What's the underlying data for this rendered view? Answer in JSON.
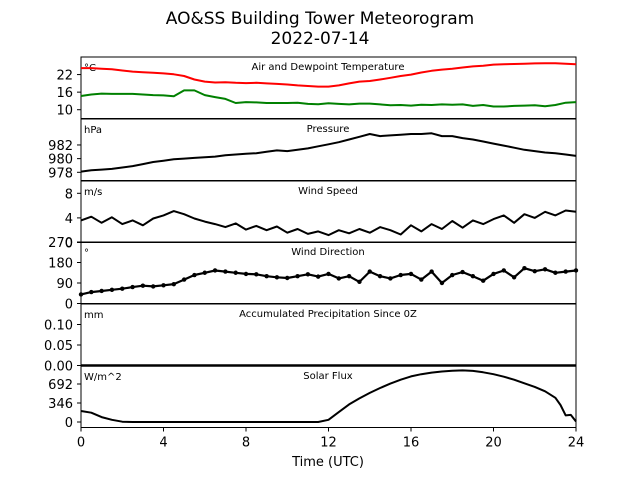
{
  "title": "AO&SS Building Tower Meteorogram",
  "subtitle": "2022-07-14",
  "xlabel": "Time (UTC)",
  "x_ticks": [
    "0",
    "4",
    "8",
    "12",
    "16",
    "20",
    "24"
  ],
  "x_tick_values": [
    0,
    4,
    8,
    12,
    16,
    20,
    24
  ],
  "chart_data": [
    {
      "type": "line",
      "title": "Air and Dewpoint Temperature",
      "unit_label": "°C",
      "ylim": [
        7,
        28
      ],
      "y_ticks": [
        10,
        16,
        22
      ],
      "x": [
        0,
        0.5,
        1,
        1.5,
        2,
        2.5,
        3,
        3.5,
        4,
        4.5,
        5,
        5.5,
        6,
        6.5,
        7,
        7.5,
        8,
        8.5,
        9,
        9.5,
        10,
        10.5,
        11,
        11.5,
        12,
        12.5,
        13,
        13.5,
        14,
        14.5,
        15,
        15.5,
        16,
        16.5,
        17,
        17.5,
        18,
        18.5,
        19,
        19.5,
        20,
        20.5,
        21,
        21.5,
        22,
        22.5,
        23,
        23.5,
        24
      ],
      "series": [
        {
          "color": "#ff0000",
          "values": [
            24.2,
            24.2,
            24.0,
            23.8,
            23.4,
            23.0,
            22.8,
            22.6,
            22.4,
            22.1,
            21.5,
            20.3,
            19.6,
            19.3,
            19.4,
            19.2,
            19.1,
            19.2,
            19.0,
            18.8,
            18.6,
            18.3,
            18.1,
            17.9,
            17.9,
            18.3,
            19.0,
            19.6,
            19.8,
            20.3,
            20.9,
            21.5,
            22.0,
            22.7,
            23.3,
            23.7,
            24.0,
            24.4,
            24.8,
            25.0,
            25.4,
            25.5,
            25.6,
            25.7,
            25.8,
            25.9,
            25.9,
            25.7,
            25.5
          ]
        },
        {
          "color": "#008000",
          "values": [
            14.7,
            15.2,
            15.5,
            15.4,
            15.4,
            15.4,
            15.2,
            15.0,
            14.9,
            14.6,
            16.6,
            16.6,
            15.0,
            14.3,
            13.7,
            12.3,
            12.6,
            12.5,
            12.3,
            12.3,
            12.3,
            12.4,
            12.0,
            11.9,
            12.2,
            12.0,
            11.8,
            12.1,
            12.1,
            11.8,
            11.5,
            11.6,
            11.4,
            11.7,
            11.6,
            11.8,
            11.7,
            11.8,
            11.3,
            11.6,
            11.1,
            11.1,
            11.3,
            11.4,
            11.5,
            11.2,
            11.6,
            12.4,
            12.6
          ]
        }
      ]
    },
    {
      "type": "line",
      "title": "Pressure",
      "unit_label": "hPa",
      "ylim": [
        976.8,
        985.8
      ],
      "y_ticks": [
        978,
        980,
        982
      ],
      "x": [
        0,
        0.5,
        1,
        1.5,
        2,
        2.5,
        3,
        3.5,
        4,
        4.5,
        5,
        5.5,
        6,
        6.5,
        7,
        7.5,
        8,
        8.5,
        9,
        9.5,
        10,
        10.5,
        11,
        11.5,
        12,
        12.5,
        13,
        13.5,
        14,
        14.5,
        15,
        15.5,
        16,
        16.5,
        17,
        17.5,
        18,
        18.5,
        19,
        19.5,
        20,
        20.5,
        21,
        21.5,
        22,
        22.5,
        23,
        23.5,
        24
      ],
      "series": [
        {
          "color": "#000000",
          "values": [
            978.1,
            978.3,
            978.4,
            978.5,
            978.7,
            978.9,
            979.2,
            979.5,
            979.7,
            979.9,
            980.0,
            980.1,
            980.2,
            980.3,
            980.5,
            980.6,
            980.7,
            980.8,
            981.0,
            981.2,
            981.1,
            981.3,
            981.5,
            981.8,
            982.1,
            982.4,
            982.8,
            983.2,
            983.6,
            983.3,
            983.4,
            983.5,
            983.6,
            983.6,
            983.7,
            983.3,
            983.3,
            983.0,
            982.8,
            982.5,
            982.2,
            981.9,
            981.6,
            981.3,
            981.1,
            980.9,
            980.8,
            980.6,
            980.4
          ]
        }
      ]
    },
    {
      "type": "line",
      "title": "Wind Speed",
      "unit_label": "m/s",
      "ylim": [
        0,
        10
      ],
      "y_ticks": [
        0,
        4,
        8
      ],
      "x": [
        0,
        0.5,
        1,
        1.5,
        2,
        2.5,
        3,
        3.5,
        4,
        4.5,
        5,
        5.5,
        6,
        6.5,
        7,
        7.5,
        8,
        8.5,
        9,
        9.5,
        10,
        10.5,
        11,
        11.5,
        12,
        12.5,
        13,
        13.5,
        14,
        14.5,
        15,
        15.5,
        16,
        16.5,
        17,
        17.5,
        18,
        18.5,
        19,
        19.5,
        20,
        20.5,
        21,
        21.5,
        22,
        22.5,
        23,
        23.5,
        24
      ],
      "series": [
        {
          "color": "#000000",
          "values": [
            3.6,
            4.2,
            3.2,
            4.1,
            3.0,
            3.6,
            2.8,
            3.9,
            4.4,
            5.1,
            4.6,
            3.9,
            3.4,
            3.0,
            2.5,
            3.1,
            2.1,
            2.7,
            2.0,
            2.6,
            1.6,
            2.2,
            1.4,
            1.8,
            1.2,
            2.0,
            1.5,
            2.2,
            1.6,
            2.5,
            2.0,
            1.3,
            2.8,
            1.8,
            3.0,
            2.2,
            3.5,
            2.4,
            3.6,
            3.0,
            3.8,
            4.4,
            3.2,
            4.6,
            4.0,
            5.0,
            4.4,
            5.2,
            5.0
          ]
        }
      ]
    },
    {
      "type": "scatter",
      "title": "Wind Direction",
      "unit_label": "°",
      "ylim": [
        0,
        270
      ],
      "y_ticks": [
        0,
        90,
        180,
        270
      ],
      "x": [
        0,
        0.5,
        1,
        1.5,
        2,
        2.5,
        3,
        3.5,
        4,
        4.5,
        5,
        5.5,
        6,
        6.5,
        7,
        7.5,
        8,
        8.5,
        9,
        9.5,
        10,
        10.5,
        11,
        11.5,
        12,
        12.5,
        13,
        13.5,
        14,
        14.5,
        15,
        15.5,
        16,
        16.5,
        17,
        17.5,
        18,
        18.5,
        19,
        19.5,
        20,
        20.5,
        21,
        21.5,
        22,
        22.5,
        23,
        23.5,
        24
      ],
      "series": [
        {
          "color": "#000000",
          "values": [
            40,
            50,
            55,
            60,
            65,
            72,
            78,
            75,
            80,
            85,
            105,
            125,
            135,
            145,
            140,
            135,
            130,
            128,
            120,
            115,
            112,
            120,
            128,
            118,
            130,
            110,
            120,
            95,
            140,
            120,
            110,
            125,
            130,
            105,
            140,
            90,
            125,
            138,
            120,
            100,
            130,
            145,
            115,
            155,
            142,
            150,
            135,
            140,
            145
          ]
        }
      ]
    },
    {
      "type": "line",
      "title": "Accumulated Precipitation Since 0Z",
      "unit_label": "mm",
      "ylim": [
        0,
        0.15
      ],
      "y_ticks": [
        0.0,
        0.05,
        0.1
      ],
      "y_tick_labels": [
        "0.00",
        "0.05",
        "0.10"
      ],
      "x": [
        0,
        24
      ],
      "series": [
        {
          "color": "#000000",
          "values": [
            0,
            0
          ]
        }
      ]
    },
    {
      "type": "line",
      "title": "Solar Flux",
      "unit_label": "W/m^2",
      "ylim": [
        -100,
        1020
      ],
      "y_ticks": [
        0,
        346,
        692
      ],
      "x": [
        0,
        0.5,
        1,
        1.5,
        2,
        2.5,
        3,
        4,
        5,
        6,
        7,
        8,
        9,
        10,
        11,
        11.5,
        12,
        12.5,
        13,
        13.5,
        14,
        14.5,
        15,
        15.5,
        16,
        16.5,
        17,
        17.5,
        18,
        18.5,
        19,
        19.5,
        20,
        20.5,
        21,
        21.5,
        22,
        22.5,
        23,
        23.25,
        23.5,
        23.75,
        24
      ],
      "series": [
        {
          "color": "#000000",
          "values": [
            200,
            170,
            90,
            40,
            5,
            0,
            0,
            0,
            0,
            0,
            0,
            0,
            0,
            0,
            0,
            0,
            40,
            180,
            320,
            430,
            530,
            620,
            700,
            770,
            830,
            870,
            900,
            920,
            935,
            940,
            930,
            905,
            870,
            825,
            770,
            705,
            640,
            560,
            440,
            310,
            120,
            130,
            10
          ]
        }
      ]
    }
  ]
}
